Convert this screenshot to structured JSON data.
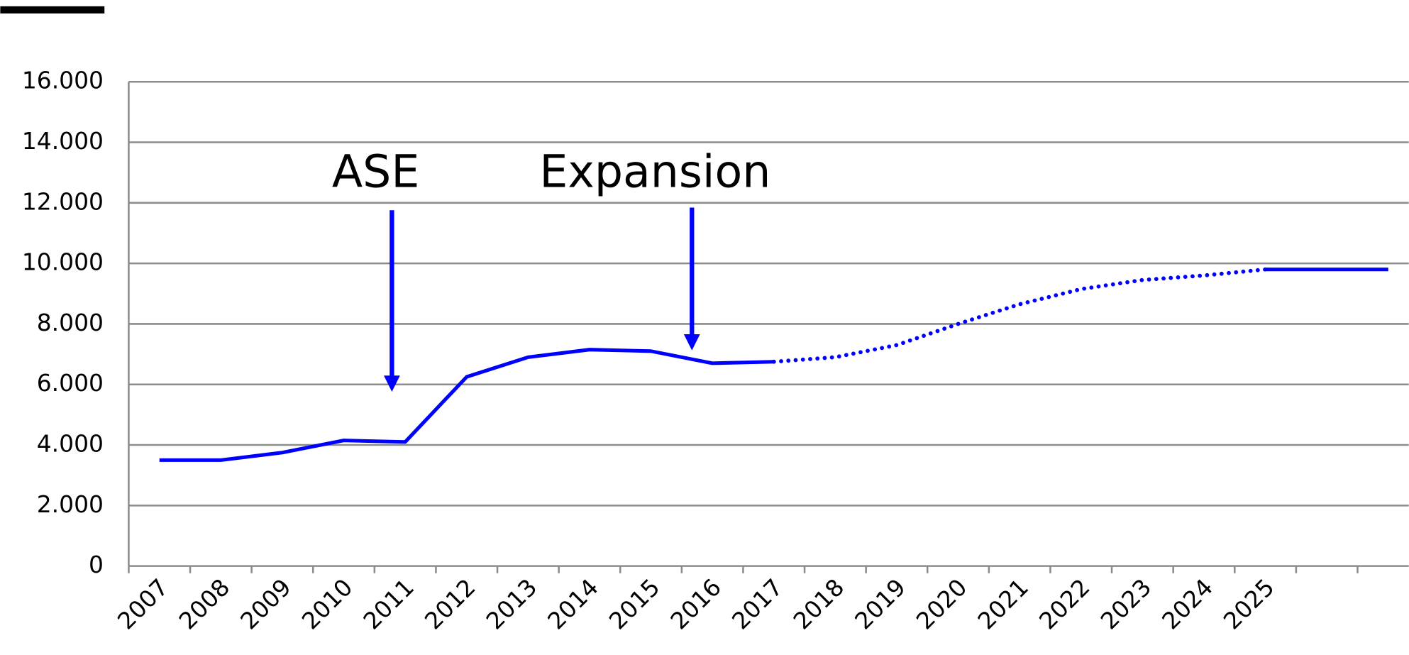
{
  "chart_data": {
    "type": "line",
    "categories": [
      "2007",
      "2008",
      "2009",
      "2010",
      "2011",
      "2012",
      "2013",
      "2014",
      "2015",
      "2016",
      "2017",
      "2018",
      "2019",
      "2020",
      "2021",
      "2022",
      "2023",
      "2024",
      "2025",
      null,
      null
    ],
    "series": [
      {
        "color": "#0000ff",
        "style": "solid",
        "values": [
          3500,
          3500,
          3750,
          4150,
          4100,
          6250,
          6900,
          7150,
          7100,
          6700,
          6750,
          null,
          null,
          null,
          null,
          null,
          null,
          null,
          null,
          null,
          null
        ]
      },
      {
        "color": "#0000ff",
        "style": "dotted",
        "values": [
          null,
          null,
          null,
          null,
          null,
          null,
          null,
          null,
          null,
          null,
          6750,
          6900,
          7300,
          8000,
          8650,
          9150,
          9450,
          9600,
          9800,
          null,
          null
        ]
      },
      {
        "color": "#0000ff",
        "style": "solid",
        "values": [
          null,
          null,
          null,
          null,
          null,
          null,
          null,
          null,
          null,
          null,
          null,
          null,
          null,
          null,
          null,
          null,
          null,
          null,
          9800,
          9800,
          9800
        ]
      }
    ],
    "ylim": [
      0,
      16000
    ],
    "yticks": [
      0,
      {
        "value": 2000,
        "label": "2.000"
      },
      {
        "value": 4000,
        "label": "4.000"
      },
      {
        "value": 6000,
        "label": "6.000"
      },
      {
        "value": 8000,
        "label": "8.000"
      },
      {
        "value": 10000,
        "label": "10.000"
      },
      {
        "value": 12000,
        "label": "12.000"
      },
      {
        "value": 14000,
        "label": "14.000"
      },
      {
        "value": 16000,
        "label": "16.000"
      }
    ],
    "grid": true,
    "annotations": [
      {
        "text": "ASE"
      },
      {
        "text": "Expansion"
      }
    ]
  }
}
